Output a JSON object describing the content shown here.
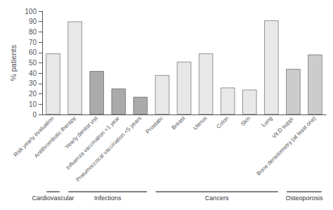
{
  "chart_data": {
    "type": "bar",
    "categories": [
      "Risk yearly evaluation",
      "Antithrombotic therapy",
      "Yearly dentist vist",
      "Influenza vaccination <1 year",
      "Pneumoccocal vaccination <5 years",
      "Prostatic",
      "Breast",
      "Uterus",
      "Colon",
      "Skin",
      "Lung",
      "Vit.D suppl.",
      "Bone densitometry (at least one)"
    ],
    "values": [
      59,
      90,
      42,
      25,
      17,
      38,
      51,
      59,
      26,
      24,
      91,
      44,
      58
    ],
    "colors": [
      "#e8e8e8",
      "#e8e8e8",
      "#aaaaaa",
      "#aaaaaa",
      "#aaaaaa",
      "#e8e8e8",
      "#e8e8e8",
      "#e8e8e8",
      "#e8e8e8",
      "#e8e8e8",
      "#e8e8e8",
      "#cccccc",
      "#cccccc"
    ],
    "ylabel": "% patients",
    "ylim": [
      0,
      100
    ],
    "yticks": [
      0,
      10,
      20,
      30,
      40,
      50,
      60,
      70,
      80,
      90,
      100
    ],
    "grid": false,
    "annotations": [
      {
        "text": "Cardiovascular",
        "from": "Risk yearly evaluation",
        "to": "Risk yearly evaluation"
      },
      {
        "text": "Infections",
        "from": "Antithrombotic therapy",
        "to": "Pneumoccocal vaccination <5 years"
      },
      {
        "text": "Cancers",
        "from": "Prostatic",
        "to": "Lung"
      },
      {
        "text": "Osteoporosis",
        "from": "Vit.D suppl.",
        "to": "Bone densitometry (at least one)"
      }
    ]
  }
}
